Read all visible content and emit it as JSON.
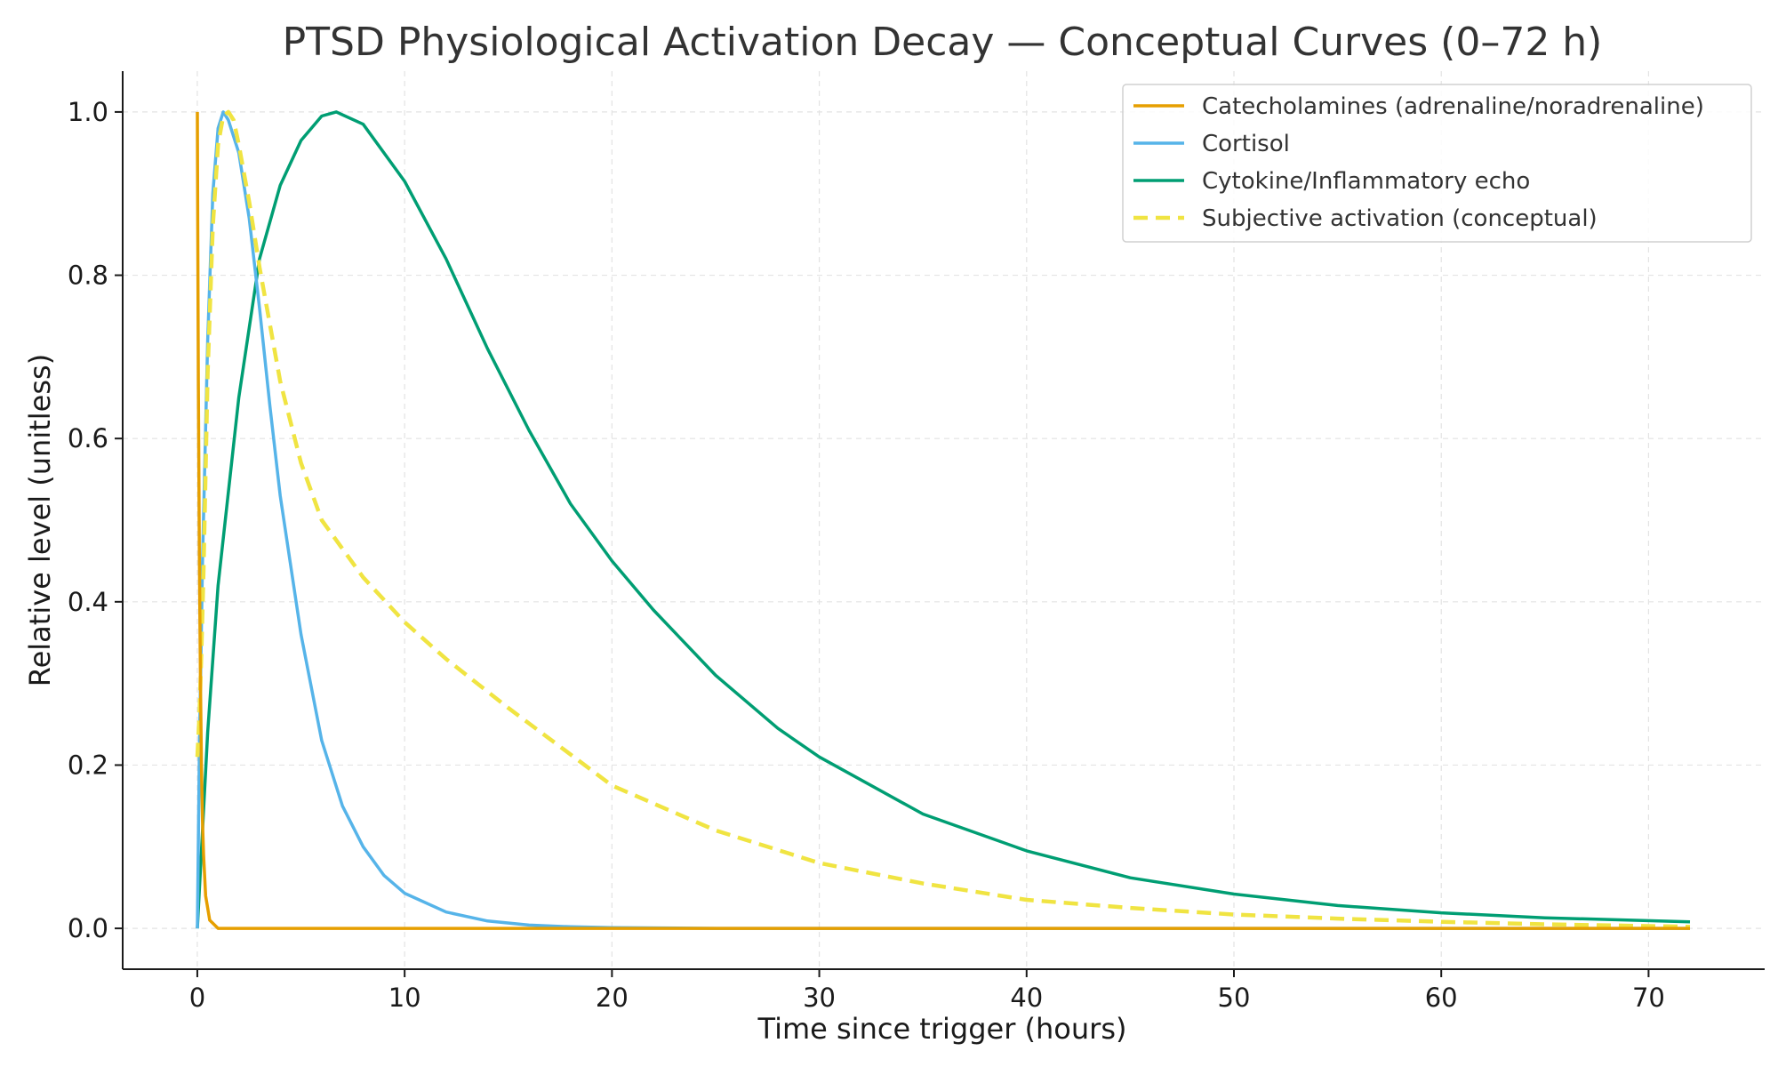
{
  "chart_data": {
    "type": "line",
    "title": "PTSD Physiological Activation Decay — Conceptual Curves (0–72 h)",
    "xlabel": "Time since trigger (hours)",
    "ylabel": "Relative level (unitless)",
    "xlim": [
      -3.6,
      75.6
    ],
    "ylim": [
      -0.05,
      1.05
    ],
    "xticks": [
      0,
      10,
      20,
      30,
      40,
      50,
      60,
      70
    ],
    "yticks": [
      0.0,
      0.2,
      0.4,
      0.6,
      0.8,
      1.0
    ],
    "xtick_labels": [
      "0",
      "10",
      "20",
      "30",
      "40",
      "50",
      "60",
      "70"
    ],
    "ytick_labels": [
      "0.0",
      "0.2",
      "0.4",
      "0.6",
      "0.8",
      "1.0"
    ],
    "grid": true,
    "legend_position": "top-right",
    "series": [
      {
        "name": "Catecholamines (adrenaline/noradrenaline)",
        "color": "#E69F00",
        "style": "solid",
        "x": [
          0,
          0.01,
          0.05,
          0.1,
          0.15,
          0.2,
          0.25,
          0.3,
          0.4,
          0.6,
          1,
          2,
          5,
          10,
          20,
          40,
          72
        ],
        "y": [
          1.0,
          0.93,
          0.67,
          0.45,
          0.3,
          0.2,
          0.13,
          0.09,
          0.04,
          0.01,
          0.0,
          0.0,
          0.0,
          0.0,
          0.0,
          0.0,
          0.0
        ]
      },
      {
        "name": "Cortisol",
        "color": "#56B4E9",
        "style": "solid",
        "x": [
          0,
          0.1,
          0.25,
          0.5,
          0.75,
          1.0,
          1.25,
          1.5,
          2,
          2.5,
          3,
          3.5,
          4,
          5,
          6,
          7,
          8,
          9,
          10,
          12,
          14,
          16,
          18,
          20,
          25,
          30,
          40,
          50,
          60,
          72
        ],
        "y": [
          0.0,
          0.22,
          0.45,
          0.72,
          0.9,
          0.98,
          1.0,
          0.99,
          0.95,
          0.87,
          0.76,
          0.64,
          0.53,
          0.36,
          0.23,
          0.15,
          0.1,
          0.065,
          0.043,
          0.02,
          0.009,
          0.004,
          0.002,
          0.001,
          0.0,
          0.0,
          0.0,
          0.0,
          0.0,
          0.0
        ]
      },
      {
        "name": "Cytokine/Inflammatory echo",
        "color": "#009E73",
        "style": "solid",
        "x": [
          0,
          0.5,
          1,
          2,
          3,
          4,
          5,
          6,
          6.7,
          8,
          10,
          12,
          14,
          16,
          18,
          20,
          22,
          25,
          28,
          30,
          35,
          40,
          45,
          50,
          55,
          60,
          65,
          72
        ],
        "y": [
          0.0,
          0.24,
          0.42,
          0.65,
          0.82,
          0.91,
          0.965,
          0.995,
          1.0,
          0.985,
          0.915,
          0.82,
          0.71,
          0.61,
          0.52,
          0.45,
          0.39,
          0.31,
          0.245,
          0.21,
          0.14,
          0.095,
          0.062,
          0.042,
          0.028,
          0.019,
          0.013,
          0.008
        ]
      },
      {
        "name": "Subjective activation (conceptual)",
        "color": "#F0E442",
        "style": "dashed",
        "x": [
          0,
          0.1,
          0.2,
          0.3,
          0.5,
          0.75,
          1.0,
          1.25,
          1.5,
          1.75,
          2,
          2.5,
          3,
          4,
          5,
          6,
          8,
          10,
          12,
          15,
          20,
          25,
          30,
          35,
          40,
          45,
          50,
          55,
          60,
          65,
          72
        ],
        "y": [
          0.21,
          0.26,
          0.34,
          0.44,
          0.68,
          0.86,
          0.96,
          0.995,
          1.0,
          0.99,
          0.96,
          0.89,
          0.81,
          0.67,
          0.57,
          0.5,
          0.43,
          0.375,
          0.33,
          0.27,
          0.175,
          0.12,
          0.08,
          0.055,
          0.035,
          0.025,
          0.017,
          0.012,
          0.008,
          0.005,
          0.002
        ]
      }
    ]
  }
}
